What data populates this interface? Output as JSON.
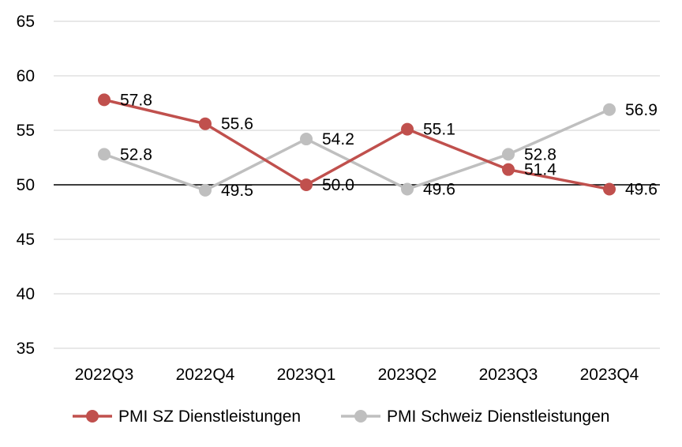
{
  "chart_data": {
    "type": "line",
    "title": "",
    "xlabel": "",
    "ylabel": "",
    "categories": [
      "2022Q3",
      "2022Q4",
      "2023Q1",
      "2023Q2",
      "2023Q3",
      "2023Q4"
    ],
    "ylim": [
      35,
      65
    ],
    "yticks": [
      35,
      40,
      45,
      50,
      55,
      60,
      65
    ],
    "ytick_labels": [
      "35",
      "40",
      "45",
      "50",
      "55",
      "60",
      "65"
    ],
    "reference_line": 50,
    "grid": true,
    "legend_position": "bottom",
    "series": [
      {
        "name": "PMI SZ Dienstleistungen",
        "color": "#c0504d",
        "values": [
          57.8,
          55.6,
          50.0,
          55.1,
          51.4,
          49.6
        ],
        "labels": [
          "57.8",
          "55.6",
          "50.0",
          "55.1",
          "51.4",
          "49.6"
        ]
      },
      {
        "name": "PMI Schweiz Dienstleistungen",
        "color": "#bfbfbf",
        "values": [
          52.8,
          49.5,
          54.2,
          49.6,
          52.8,
          56.9
        ],
        "labels": [
          "52.8",
          "49.5",
          "54.2",
          "49.6",
          "52.8",
          "56.9"
        ]
      }
    ]
  }
}
